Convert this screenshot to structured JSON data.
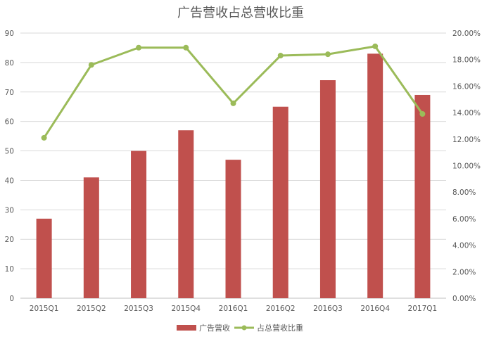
{
  "chart_data": {
    "type": "bar",
    "title": "广告营收占总营收比重",
    "categories": [
      "2015Q1",
      "2015Q2",
      "2015Q3",
      "2015Q4",
      "2016Q1",
      "2016Q2",
      "2016Q3",
      "2016Q4",
      "2017Q1"
    ],
    "series": [
      {
        "name": "广告营收",
        "type": "bar",
        "axis": "left",
        "color": "#c0504d",
        "values": [
          27,
          41,
          50,
          57,
          47,
          65,
          74,
          83,
          69
        ]
      },
      {
        "name": "占总营收比重",
        "type": "line",
        "axis": "right",
        "color": "#9bbb59",
        "values": [
          0.121,
          0.176,
          0.189,
          0.189,
          0.147,
          0.183,
          0.184,
          0.19,
          0.139
        ]
      }
    ],
    "y_left": {
      "min": 0,
      "max": 90,
      "step": 10,
      "ticks": [
        "0",
        "10",
        "20",
        "30",
        "40",
        "50",
        "60",
        "70",
        "80",
        "90"
      ]
    },
    "y_right": {
      "min": 0,
      "max": 0.2,
      "step": 0.02,
      "ticks": [
        "0.00%",
        "2.00%",
        "4.00%",
        "6.00%",
        "8.00%",
        "10.00%",
        "12.00%",
        "14.00%",
        "16.00%",
        "18.00%",
        "20.00%"
      ]
    },
    "grid": true,
    "legend": "bottom"
  }
}
